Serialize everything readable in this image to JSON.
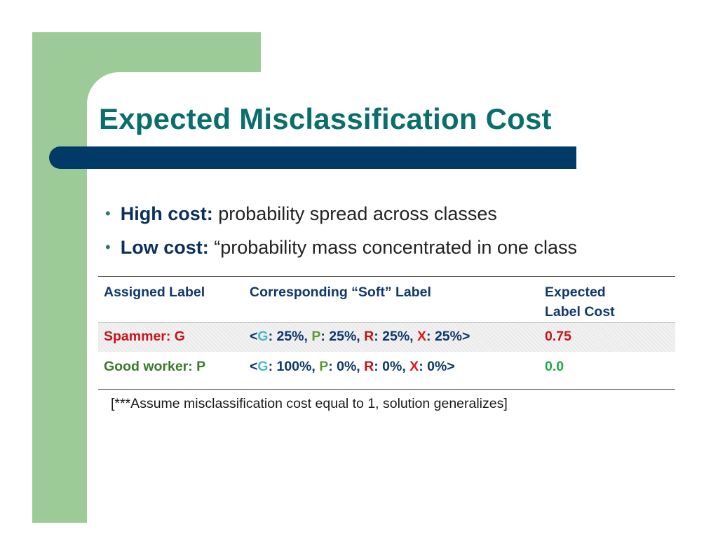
{
  "slide": {
    "title": "Expected Misclassification Cost",
    "bullets": [
      {
        "bold": "High cost:",
        "text": " probability spread across classes"
      },
      {
        "bold": "Low cost:",
        "text": " “probability mass concentrated in one class"
      }
    ]
  },
  "table": {
    "headers": {
      "assigned": "Assigned Label",
      "soft": "Corresponding “Soft” Label",
      "cost_line1": "Expected",
      "cost_line2": "Label Cost"
    },
    "rows": [
      {
        "assigned": "Spammer: G",
        "soft": {
          "open": "<",
          "g": "G",
          "g_val": ": 25%, ",
          "p": "P",
          "p_val": ": 25%, ",
          "r": "R",
          "r_val": ": 25%, ",
          "x": "X",
          "x_val": ": 25%>"
        },
        "cost": "0.75"
      },
      {
        "assigned": "Good worker: P",
        "soft": {
          "open": "<",
          "g": "G",
          "g_val": ": 100%, ",
          "p": "P",
          "p_val": ": 0%, ",
          "r": "R",
          "r_val": ": 0%, ",
          "x": "X",
          "x_val": ": 0%>"
        },
        "cost": "0.0"
      }
    ]
  },
  "footnote": "[***Assume misclassification cost equal to 1, solution generalizes]",
  "colors": {
    "title": "#0a6e6c",
    "title_bar": "#003a66",
    "deco_green": "#9ccb97",
    "class_g": "#4bb7c7",
    "class_p": "#5a9a3a",
    "class_r": "#c0141a",
    "class_x": "#d81a1a"
  }
}
